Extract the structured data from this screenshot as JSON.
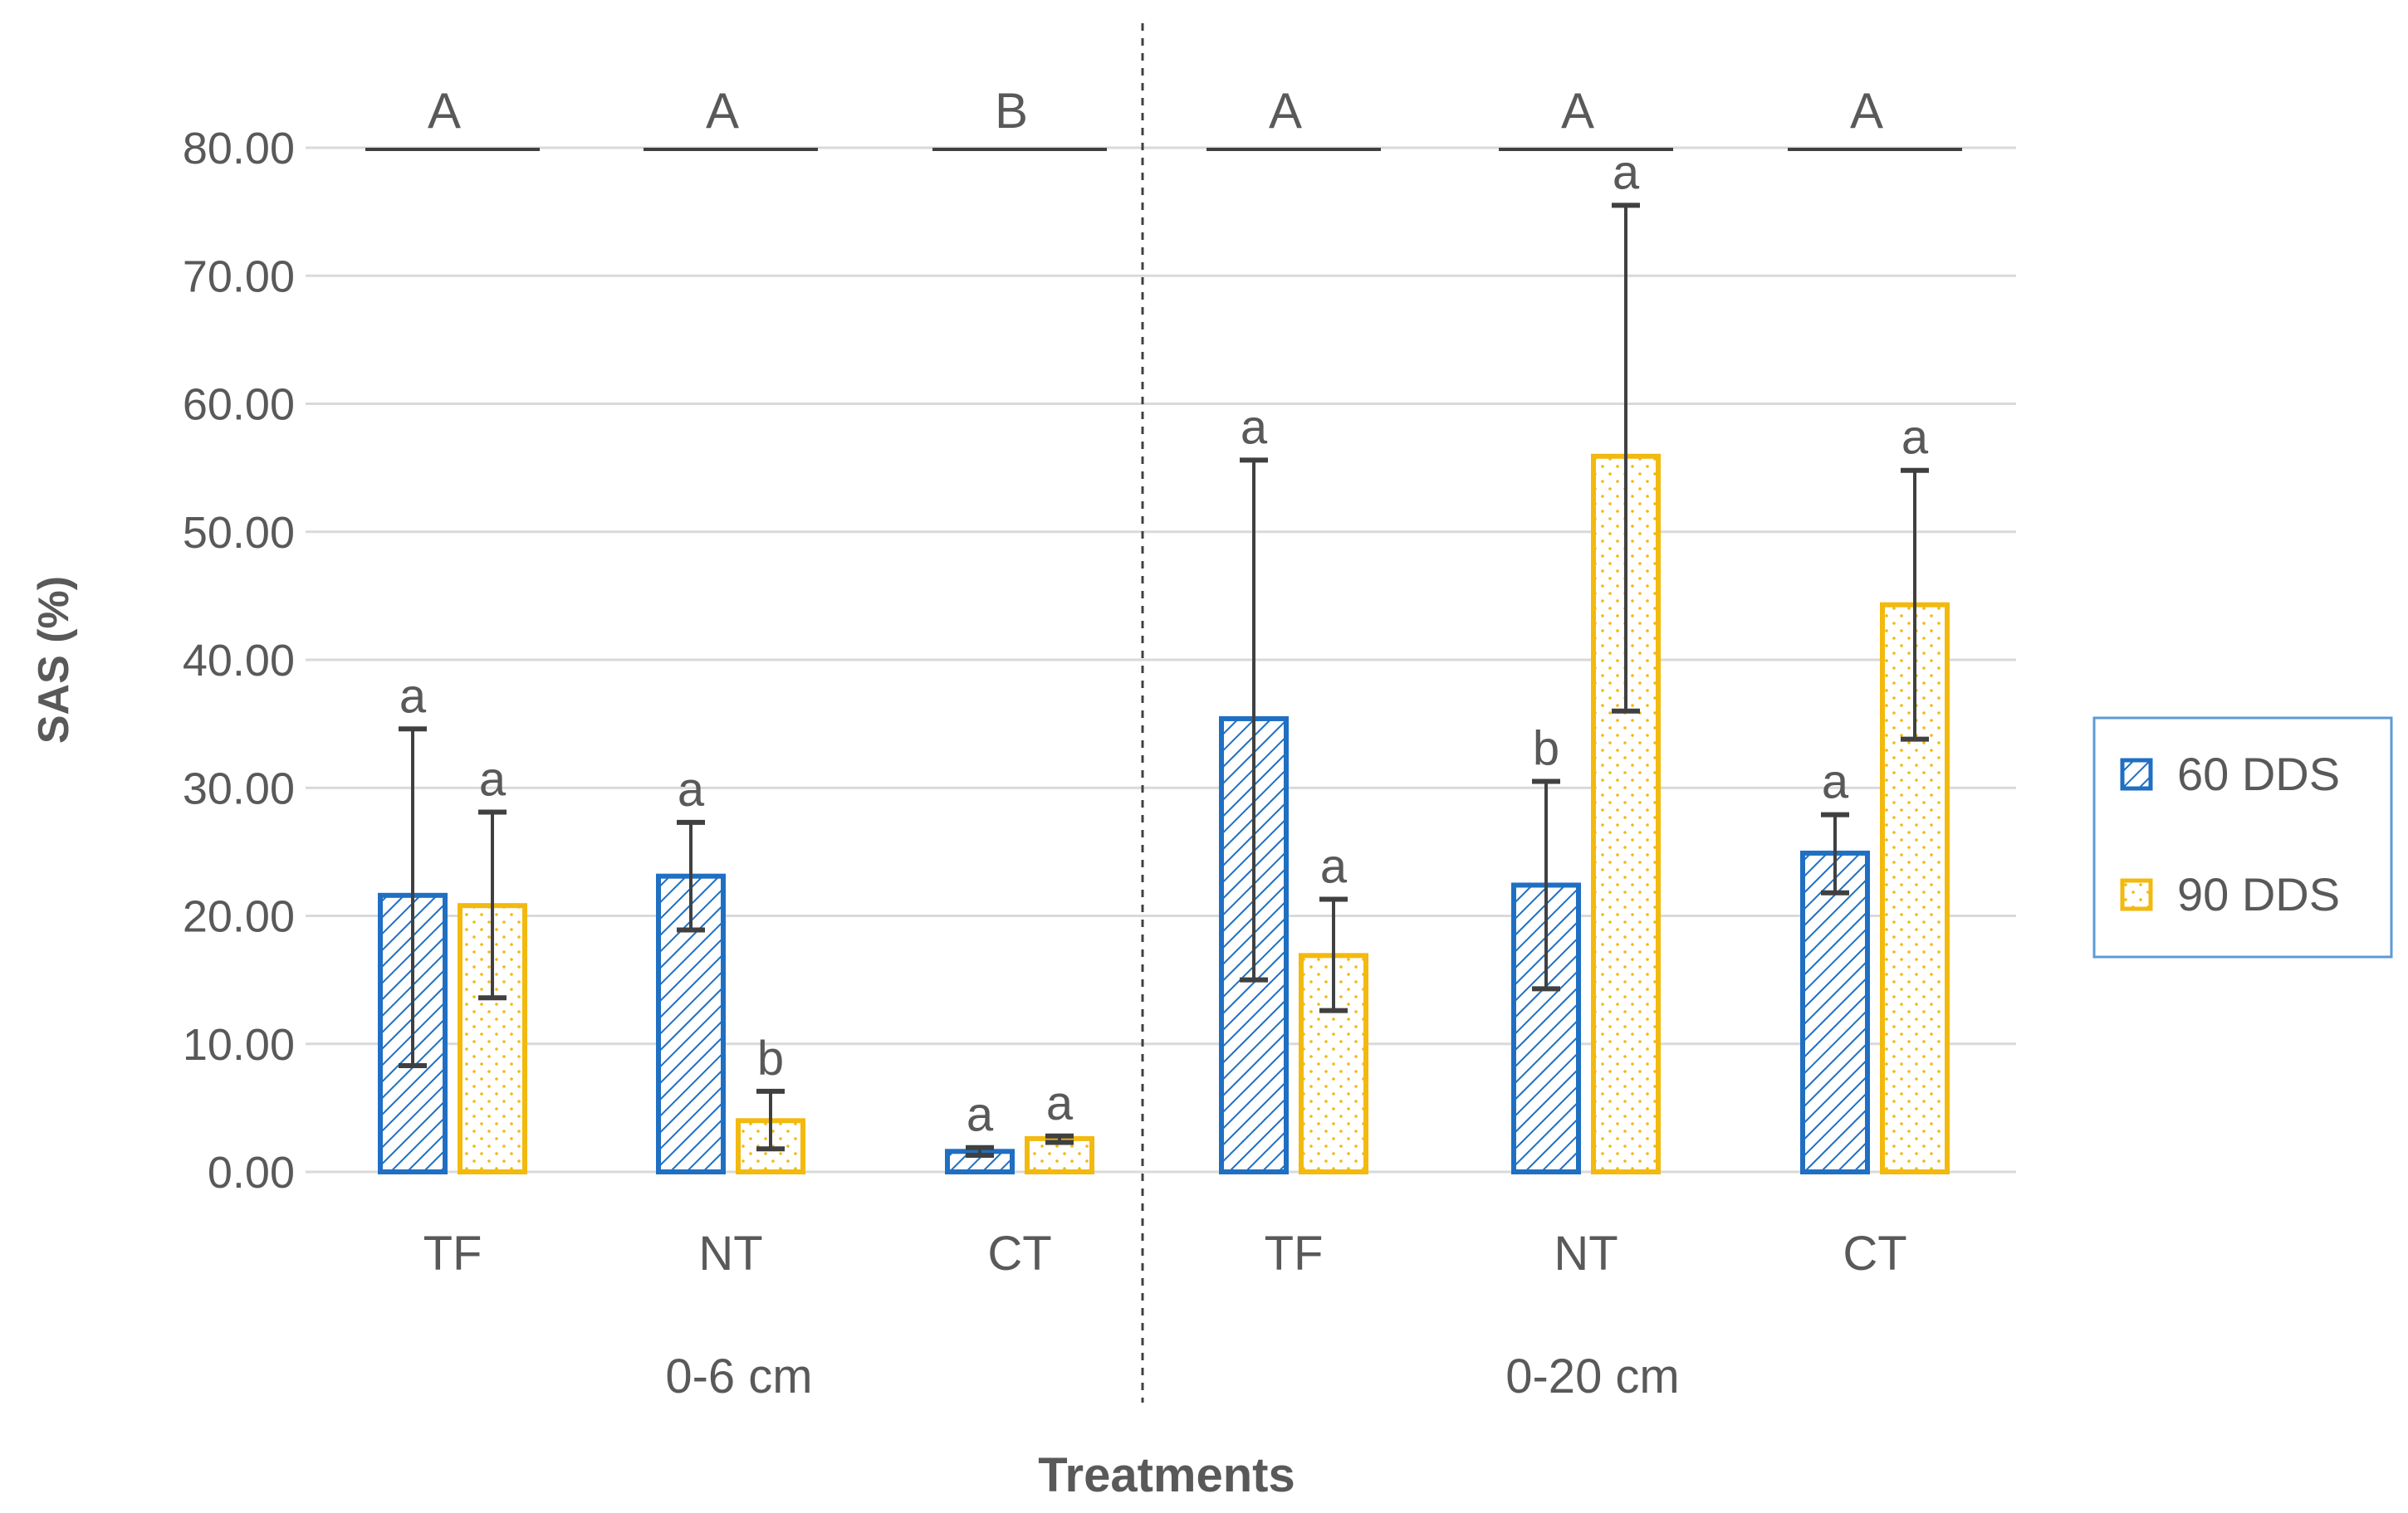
{
  "chart_data": {
    "type": "bar",
    "ylabel": "SAS (%)",
    "xlabel": "Treatments",
    "ylim": [
      0,
      80
    ],
    "y_ticks": [
      "0.00",
      "10.00",
      "20.00",
      "30.00",
      "40.00",
      "50.00",
      "60.00",
      "70.00",
      "80.00"
    ],
    "grid": true,
    "legend_position": "right",
    "colors": {
      "60 DDS": "#1f6fc2",
      "90 DDS": "#f2b90f",
      "grid": "#d9d9d9",
      "text": "#595959",
      "error": "#404040"
    },
    "groups": [
      {
        "label": "0-6 cm",
        "categories": [
          {
            "label": "TF",
            "top_letter": "A",
            "bars": [
              {
                "series": "60 DDS",
                "value": 21.6,
                "err_low": 8.3,
                "err_high": 34.6,
                "letter": "a"
              },
              {
                "series": "90 DDS",
                "value": 20.8,
                "err_low": 13.6,
                "err_high": 28.1,
                "letter": "a"
              }
            ]
          },
          {
            "label": "NT",
            "top_letter": "A",
            "bars": [
              {
                "series": "60 DDS",
                "value": 23.1,
                "err_low": 18.9,
                "err_high": 27.3,
                "letter": "a"
              },
              {
                "series": "90 DDS",
                "value": 4.0,
                "err_low": 1.8,
                "err_high": 6.3,
                "letter": "b"
              }
            ]
          },
          {
            "label": "CT",
            "top_letter": "B",
            "bars": [
              {
                "series": "60 DDS",
                "value": 1.6,
                "err_low": 1.3,
                "err_high": 1.9,
                "letter": "a"
              },
              {
                "series": "90 DDS",
                "value": 2.6,
                "err_low": 2.3,
                "err_high": 2.8,
                "letter": "a"
              }
            ]
          }
        ]
      },
      {
        "label": "0-20 cm",
        "categories": [
          {
            "label": "TF",
            "top_letter": "A",
            "bars": [
              {
                "series": "60 DDS",
                "value": 35.4,
                "err_low": 15.0,
                "err_high": 55.6,
                "letter": "a"
              },
              {
                "series": "90 DDS",
                "value": 16.9,
                "err_low": 12.6,
                "err_high": 21.3,
                "letter": "a"
              }
            ]
          },
          {
            "label": "NT",
            "top_letter": "A",
            "bars": [
              {
                "series": "60 DDS",
                "value": 22.4,
                "err_low": 14.3,
                "err_high": 30.5,
                "letter": "b"
              },
              {
                "series": "90 DDS",
                "value": 55.9,
                "err_low": 36.0,
                "err_high": 75.5,
                "letter": "a"
              }
            ]
          },
          {
            "label": "CT",
            "top_letter": "A",
            "bars": [
              {
                "series": "60 DDS",
                "value": 24.9,
                "err_low": 21.8,
                "err_high": 27.9,
                "letter": "a"
              },
              {
                "series": "90 DDS",
                "value": 44.3,
                "err_low": 33.8,
                "err_high": 54.8,
                "letter": "a"
              }
            ]
          }
        ]
      }
    ],
    "legend": [
      "60 DDS",
      "90 DDS"
    ]
  }
}
